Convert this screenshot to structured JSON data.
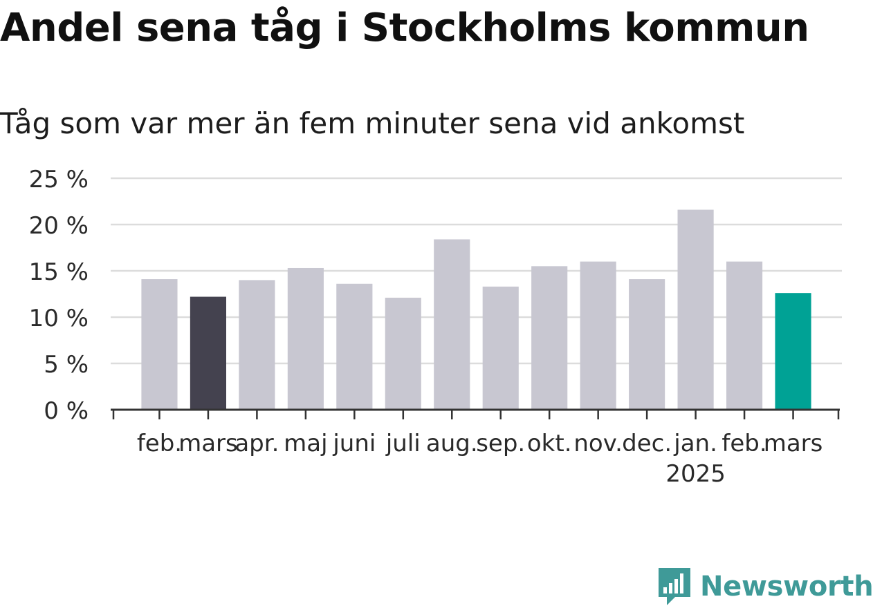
{
  "title": "Andel sena tåg i Stockholms kommun",
  "subtitle": "Tåg som var mer än fem minuter sena vid ankomst",
  "brand": {
    "name": "Newsworthy",
    "icon": "newsworthy-logo-icon",
    "color": "#3f9a98"
  },
  "chart_data": {
    "type": "bar",
    "categories": [
      "feb.",
      "mars",
      "apr.",
      "maj",
      "juni",
      "juli",
      "aug.",
      "sep.",
      "okt.",
      "nov.",
      "dec.",
      "jan.",
      "feb.",
      "mars"
    ],
    "year_labels": [
      "",
      "",
      "",
      "",
      "",
      "",
      "",
      "",
      "",
      "",
      "",
      "2025",
      "",
      ""
    ],
    "values": [
      14.1,
      12.2,
      14.0,
      15.3,
      13.6,
      12.1,
      18.4,
      13.3,
      15.5,
      16.0,
      14.1,
      21.6,
      16.0,
      12.6
    ],
    "bar_colors": [
      "#c8c7d1",
      "#44424f",
      "#c8c7d1",
      "#c8c7d1",
      "#c8c7d1",
      "#c8c7d1",
      "#c8c7d1",
      "#c8c7d1",
      "#c8c7d1",
      "#c8c7d1",
      "#c8c7d1",
      "#c8c7d1",
      "#c8c7d1",
      "#00a295"
    ],
    "y_ticks": [
      0,
      5,
      10,
      15,
      20,
      25
    ],
    "y_tick_labels": [
      "0 %",
      "5 %",
      "10 %",
      "15 %",
      "20 %",
      "25 %"
    ],
    "ylim": [
      0,
      25
    ],
    "grid": true,
    "legend": "none"
  }
}
